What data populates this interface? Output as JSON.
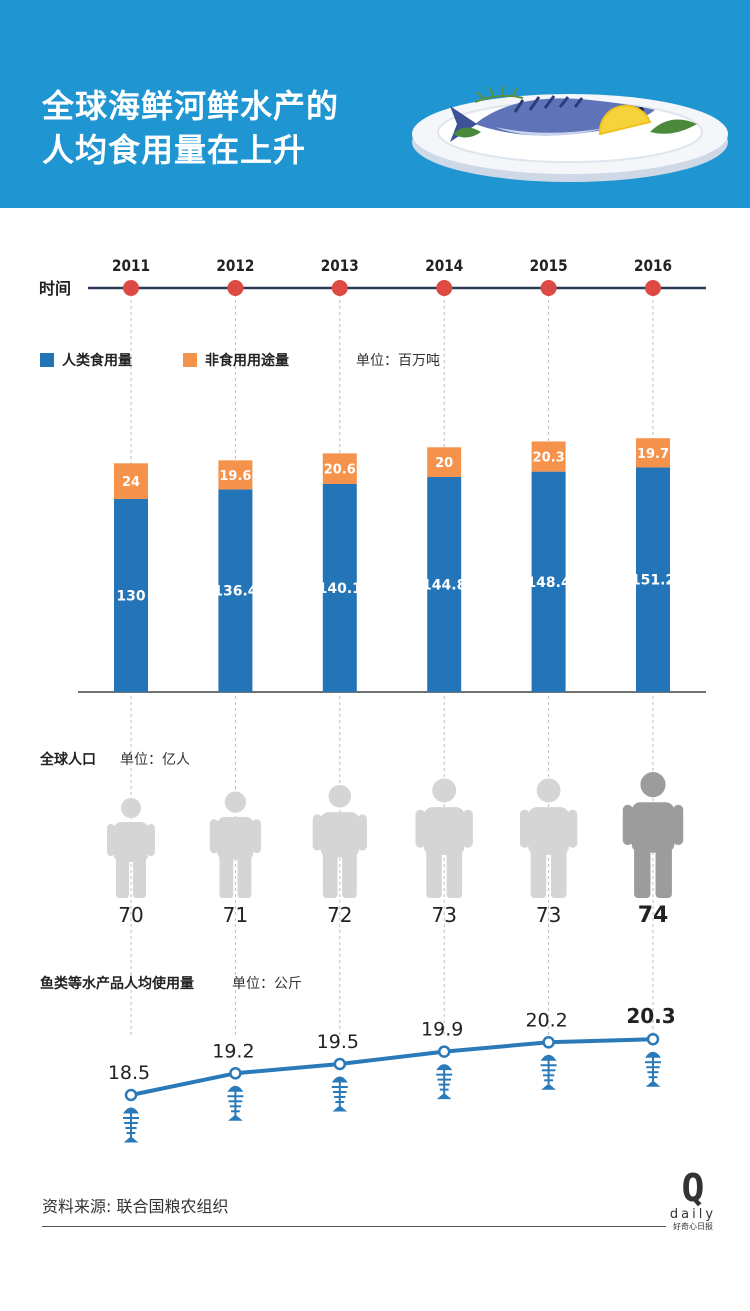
{
  "header": {
    "title_line1": "全球海鲜河鲜水产的",
    "title_line2": "人均食用量在上升"
  },
  "timeline_label": "时间",
  "colors": {
    "header_bg": "#1f95d2",
    "food": "#2474b8",
    "nonfood": "#f5924b",
    "timeline_dot": "#dc4a43",
    "person_light": "#d5d5d5",
    "person_dark": "#9c9c9c",
    "line": "#2a7ab9"
  },
  "chart_data": [
    {
      "type": "bar",
      "stacked": true,
      "categories": [
        "2011",
        "2012",
        "2013",
        "2014",
        "2015",
        "2016"
      ],
      "series": [
        {
          "name": "人类食用量",
          "values": [
            130,
            136.4,
            140.1,
            144.8,
            148.4,
            151.2
          ],
          "labels": [
            "130",
            "136.4",
            "140.1",
            "144.8",
            "148.4",
            "151.2"
          ]
        },
        {
          "name": "非食用用途量",
          "values": [
            24,
            19.6,
            20.6,
            20,
            20.3,
            19.7
          ],
          "labels": [
            "24",
            "19.6",
            "20.6",
            "20",
            "20.3",
            "19.7"
          ]
        }
      ],
      "unit": "单位：百万吨",
      "ylim": [
        0,
        175
      ]
    },
    {
      "type": "pictograph",
      "title": "全球人口",
      "unit": "单位：亿人",
      "categories": [
        "2011",
        "2012",
        "2013",
        "2014",
        "2015",
        "2016"
      ],
      "values": [
        70,
        71,
        72,
        73,
        73,
        74
      ],
      "labels": [
        "70",
        "71",
        "72",
        "73",
        "73",
        "74"
      ]
    },
    {
      "type": "line",
      "title": "鱼类等水产品人均使用量",
      "unit": "单位：公斤",
      "categories": [
        "2011",
        "2012",
        "2013",
        "2014",
        "2015",
        "2016"
      ],
      "values": [
        18.5,
        19.2,
        19.5,
        19.9,
        20.2,
        20.3
      ],
      "labels": [
        "18.5",
        "19.2",
        "19.5",
        "19.9",
        "20.2",
        "20.3"
      ],
      "ylim": [
        18.0,
        21.0
      ]
    }
  ],
  "footer": {
    "source": "资料来源: 联合国粮农组织",
    "brand_mark": "Q",
    "brand_name": "daily",
    "brand_cn": "好奇心日报"
  }
}
